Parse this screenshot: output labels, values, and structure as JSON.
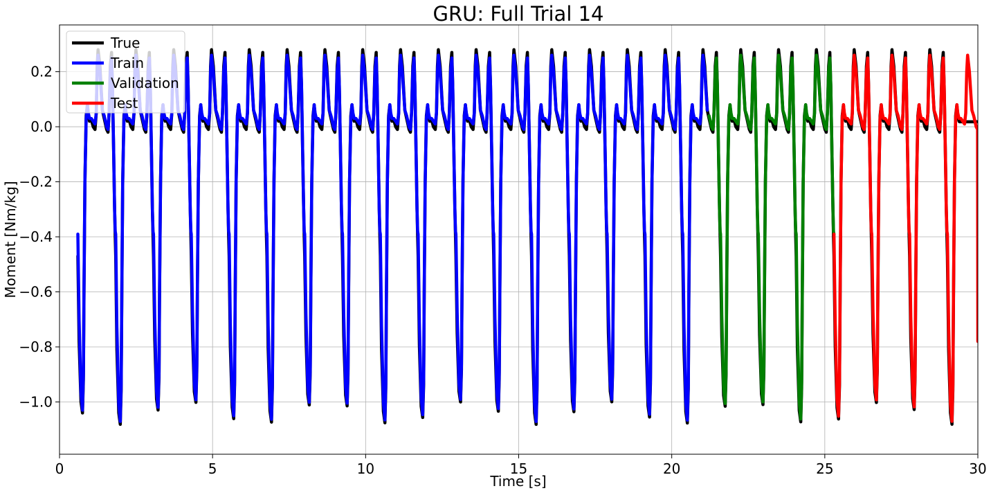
{
  "chart_data": {
    "type": "line",
    "title": "GRU: Full Trial 14",
    "xlabel": "Time [s]",
    "ylabel": "Moment [Nm/kg]",
    "xlim": [
      0,
      30
    ],
    "ylim": [
      -1.19,
      0.37
    ],
    "x_ticks": [
      0,
      5,
      10,
      15,
      20,
      25,
      30
    ],
    "x_tick_labels": [
      "0",
      "5",
      "10",
      "15",
      "20",
      "25",
      "30"
    ],
    "y_ticks": [
      0.2,
      0.0,
      -0.2,
      -0.4,
      -0.6,
      -0.8,
      -1.0
    ],
    "y_tick_labels": [
      "0.2",
      "0.0",
      "−0.2",
      "−0.4",
      "−0.6",
      "−0.8",
      "−1.0"
    ],
    "grid": true,
    "legend_position": "top-left",
    "cycle": {
      "first_start_s": 0.6,
      "period_s": 1.235,
      "count": 24,
      "end_s": 30,
      "shape": {
        "t": [
          0,
          0.04,
          0.1,
          0.15,
          0.18,
          0.2,
          0.23,
          0.27,
          0.31,
          0.34,
          0.38,
          0.44,
          0.5,
          0.56,
          0.6,
          0.63,
          0.66,
          0.72,
          0.8,
          0.86,
          0.9,
          0.94,
          0.985,
          1.02,
          1.06,
          1.1,
          1.13,
          1.17,
          1.2,
          1.22,
          1.235
        ],
        "true": [
          -0.47,
          -0.78,
          -1.0,
          -1.04,
          -0.92,
          -0.6,
          -0.2,
          0.04,
          0.08,
          0.04,
          0.02,
          0.025,
          0.0,
          -0.01,
          0.05,
          0.22,
          0.28,
          0.22,
          0.06,
          0.03,
          0.01,
          -0.01,
          -0.02,
          0.05,
          0.22,
          0.27,
          0.15,
          -0.1,
          -0.3,
          -0.4,
          -0.47
        ],
        "pred": [
          -0.39,
          -0.7,
          -0.97,
          -1.03,
          -0.9,
          -0.58,
          -0.2,
          0.03,
          0.08,
          0.05,
          0.03,
          0.03,
          0.02,
          0.01,
          0.05,
          0.2,
          0.26,
          0.2,
          0.06,
          0.04,
          0.02,
          0.0,
          -0.01,
          0.05,
          0.2,
          0.25,
          0.15,
          -0.1,
          -0.3,
          -0.38,
          -0.39
        ]
      }
    },
    "series": [
      {
        "name": "True",
        "color": "#000000",
        "from_s": 0.6,
        "to_s": 30,
        "source": "true"
      },
      {
        "name": "Train",
        "color": "#0000ff",
        "from_s": 0.6,
        "to_s": 21.2,
        "source": "pred"
      },
      {
        "name": "Validation",
        "color": "#008000",
        "from_s": 21.2,
        "to_s": 25.3,
        "source": "pred"
      },
      {
        "name": "Test",
        "color": "#ff0000",
        "from_s": 25.3,
        "to_s": 30,
        "source": "pred"
      }
    ],
    "true_tail": {
      "from_s": 29.4,
      "value": 0.018
    },
    "test_final_value": -0.78
  }
}
